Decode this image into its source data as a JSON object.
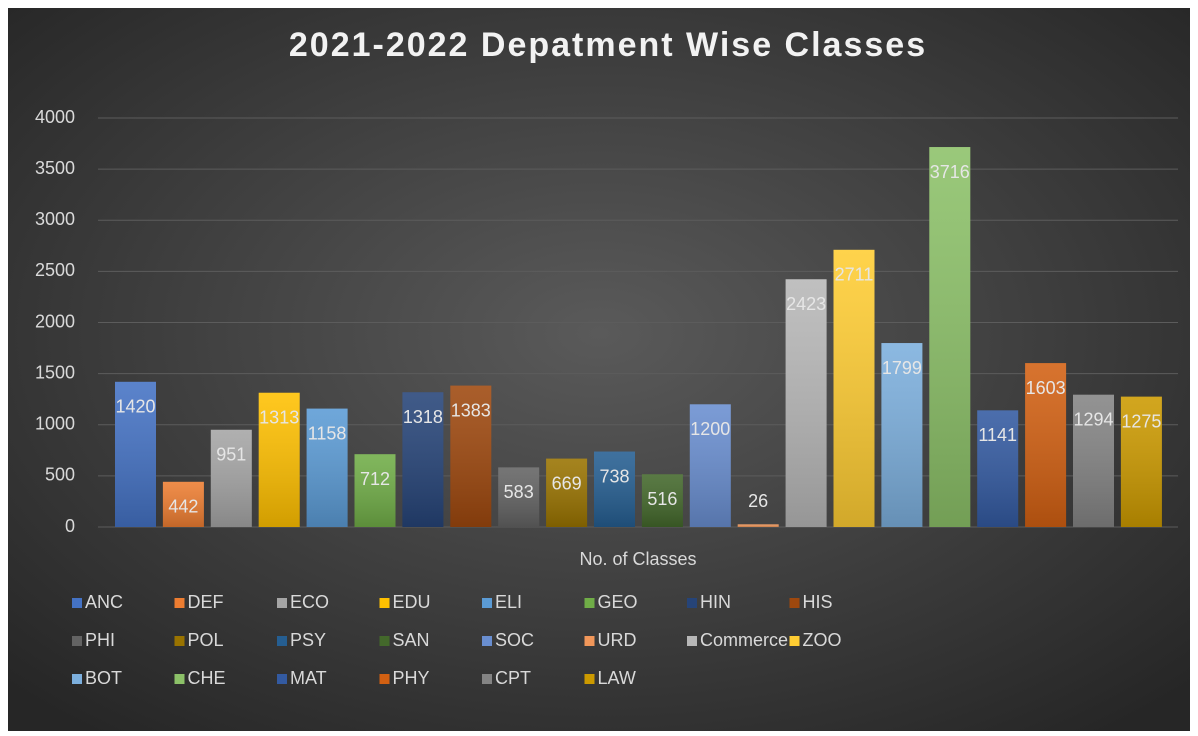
{
  "chart_data": {
    "type": "bar",
    "title": "2021-2022 Depatment Wise Classes",
    "categories": [
      "No. of Classes"
    ],
    "series": [
      {
        "name": "ANC",
        "color": "#4472c4",
        "values": [
          1420
        ]
      },
      {
        "name": "DEF",
        "color": "#ed7d31",
        "values": [
          442
        ]
      },
      {
        "name": "ECO",
        "color": "#a5a5a5",
        "values": [
          951
        ]
      },
      {
        "name": "EDU",
        "color": "#ffc000",
        "values": [
          1313
        ]
      },
      {
        "name": "ELI",
        "color": "#5b9bd5",
        "values": [
          1158
        ]
      },
      {
        "name": "GEO",
        "color": "#70ad47",
        "values": [
          712
        ]
      },
      {
        "name": "HIN",
        "color": "#264478",
        "values": [
          1318
        ]
      },
      {
        "name": "HIS",
        "color": "#9e480e",
        "values": [
          1383
        ]
      },
      {
        "name": "PHI",
        "color": "#636363",
        "values": [
          583
        ]
      },
      {
        "name": "POL",
        "color": "#997300",
        "values": [
          669
        ]
      },
      {
        "name": "PSY",
        "color": "#255e91",
        "values": [
          738
        ]
      },
      {
        "name": "SAN",
        "color": "#43682b",
        "values": [
          516
        ]
      },
      {
        "name": "SOC",
        "color": "#698ed0",
        "values": [
          1200
        ]
      },
      {
        "name": "URD",
        "color": "#f1975a",
        "values": [
          26
        ]
      },
      {
        "name": "Commerce",
        "color": "#b7b7b7",
        "values": [
          2423
        ]
      },
      {
        "name": "ZOO",
        "color": "#ffcd33",
        "values": [
          2711
        ]
      },
      {
        "name": "BOT",
        "color": "#7cafdd",
        "values": [
          1799
        ]
      },
      {
        "name": "CHE",
        "color": "#8cc168",
        "values": [
          3716
        ]
      },
      {
        "name": "MAT",
        "color": "#335aa1",
        "values": [
          1141
        ]
      },
      {
        "name": "PHY",
        "color": "#d26012",
        "values": [
          1603
        ]
      },
      {
        "name": "CPT",
        "color": "#848484",
        "values": [
          1294
        ]
      },
      {
        "name": "LAW",
        "color": "#cc9a00",
        "values": [
          1275
        ]
      }
    ],
    "ylim": [
      0,
      4000
    ],
    "yticks": [
      0,
      500,
      1000,
      1500,
      2000,
      2500,
      3000,
      3500,
      4000
    ],
    "grid": true,
    "legend": "bottom"
  }
}
